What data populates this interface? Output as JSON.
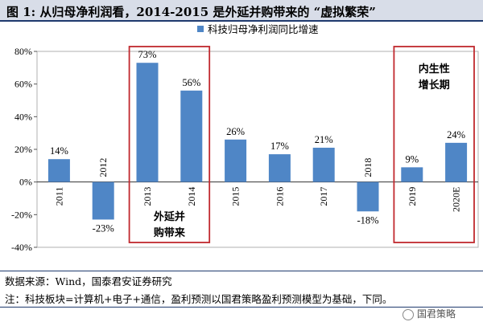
{
  "title": "图 1: 从归母净利润看，2014-2015 是外延并购带来的 “虚拟繁荣”",
  "colors": {
    "bar": "#4f86c6",
    "box": "#c0282e",
    "title_bg": "#d8dde8",
    "rule": "#1f3a6e"
  },
  "chart_data": {
    "type": "bar",
    "categories": [
      "2011",
      "2012",
      "2013",
      "2014",
      "2015",
      "2016",
      "2017",
      "2018",
      "2019",
      "2020E"
    ],
    "series": [
      {
        "name": "科技归母净利润同比增速",
        "values": [
          14,
          -23,
          73,
          56,
          26,
          17,
          21,
          -18,
          9,
          24
        ]
      }
    ],
    "value_labels": [
      "14%",
      "-23%",
      "73%",
      "56%",
      "26%",
      "17%",
      "21%",
      "-18%",
      "9%",
      "24%"
    ],
    "ylim": [
      -40,
      80
    ],
    "yticks": [
      -40,
      -20,
      0,
      20,
      40,
      60,
      80
    ],
    "ytick_labels": [
      "-40%",
      "-20%",
      "0%",
      "20%",
      "40%",
      "60%",
      "80%"
    ],
    "legend_position": "top-center",
    "annotations": [
      {
        "label_lines": [
          "外延并",
          "购带来"
        ],
        "categories": [
          "2013",
          "2014"
        ]
      },
      {
        "label_lines": [
          "内生性",
          "增长期"
        ],
        "categories": [
          "2019",
          "2020E"
        ]
      }
    ]
  },
  "footer": {
    "source": "数据来源：Wind，国泰君安证券研究",
    "note": "注：科技板块=计算机+电子+通信，盈利预测以国君策略盈利预测模型为基础，下同。"
  },
  "watermark": "国君策略"
}
